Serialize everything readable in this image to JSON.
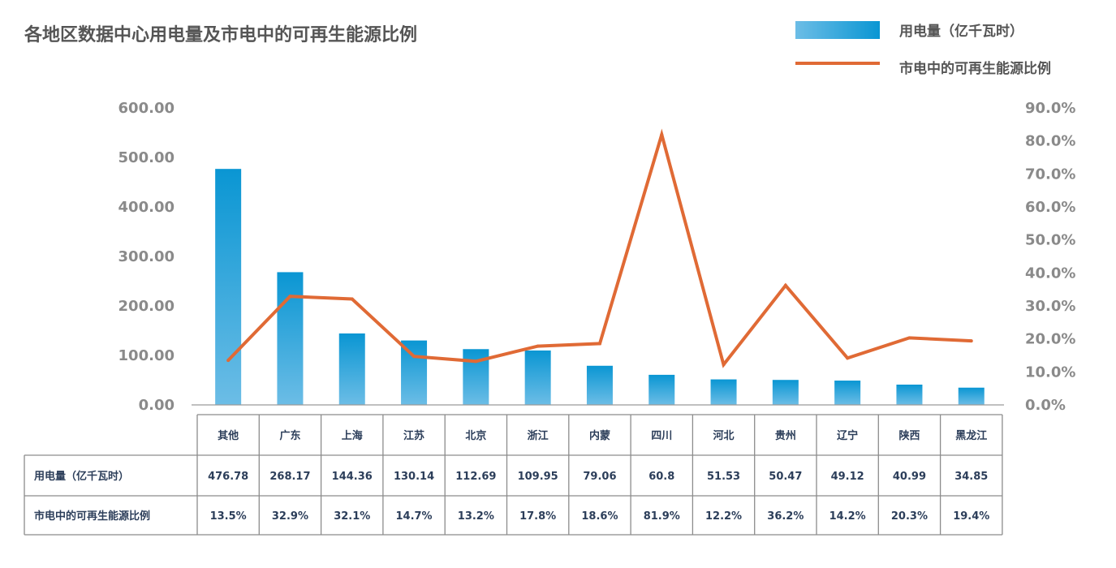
{
  "chart_data": {
    "type": "bar",
    "title": "各地区数据中心用电量及市电中的可再生能源比例",
    "categories": [
      "其他",
      "广东",
      "上海",
      "江苏",
      "北京",
      "浙江",
      "内蒙",
      "四川",
      "河北",
      "贵州",
      "辽宁",
      "陕西",
      "黑龙江"
    ],
    "series": [
      {
        "name": "用电量（亿千瓦时）",
        "type": "bar",
        "axis": "left",
        "color": "#1a9bd6",
        "values": [
          476.78,
          268.17,
          144.36,
          130.14,
          112.69,
          109.95,
          79.06,
          60.8,
          51.53,
          50.47,
          49.12,
          40.99,
          34.85
        ],
        "labels": [
          "476.78",
          "268.17",
          "144.36",
          "130.14",
          "112.69",
          "109.95",
          "79.06",
          "60.8",
          "51.53",
          "50.47",
          "49.12",
          "40.99",
          "34.85"
        ]
      },
      {
        "name": "市电中的可再生能源比例",
        "type": "line",
        "axis": "right",
        "color": "#e06a35",
        "values": [
          13.5,
          32.9,
          32.1,
          14.7,
          13.2,
          17.8,
          18.6,
          81.9,
          12.2,
          36.2,
          14.2,
          20.3,
          19.4
        ],
        "labels": [
          "13.5%",
          "32.9%",
          "32.1%",
          "14.7%",
          "13.2%",
          "17.8%",
          "18.6%",
          "81.9%",
          "12.2%",
          "36.2%",
          "14.2%",
          "20.3%",
          "19.4%"
        ]
      }
    ],
    "left_axis": {
      "ylim": [
        0,
        600
      ],
      "ticks": [
        0,
        100,
        200,
        300,
        400,
        500,
        600
      ],
      "tick_labels": [
        "0.00",
        "100.00",
        "200.00",
        "300.00",
        "400.00",
        "500.00",
        "600.00"
      ]
    },
    "right_axis": {
      "ylim": [
        0,
        90
      ],
      "ticks": [
        0,
        10,
        20,
        30,
        40,
        50,
        60,
        70,
        80,
        90
      ],
      "tick_labels": [
        "0.0%",
        "10.0%",
        "20.0%",
        "30.0%",
        "40.0%",
        "50.0%",
        "60.0%",
        "70.0%",
        "80.0%",
        "90.0%"
      ]
    },
    "legend": {
      "position": "top-right"
    },
    "grid": false,
    "data_table": true
  }
}
